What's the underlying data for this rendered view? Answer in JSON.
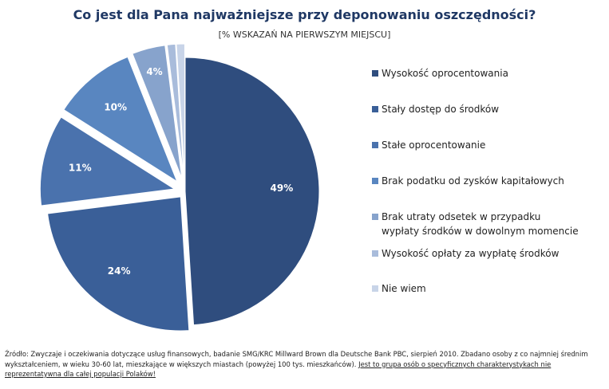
{
  "title": "Co jest dla Pana najważniejsze przy deponowaniu oszczędności?",
  "subtitle": "[% WSKAZAŃ NA PIERWSZYM MIEJSCU]",
  "chart_data": {
    "type": "pie",
    "title": "Co jest dla Pana najważniejsze przy deponowaniu oszczędności?",
    "subtitle": "[% WSKAZAŃ NA PIERWSZYM MIEJSCU]",
    "legend_position": "right",
    "unit": "%",
    "slices": [
      {
        "label": "Wysokość oprocentowania",
        "value": 49,
        "value_label": "49%",
        "color": "#2f4d7e"
      },
      {
        "label": "Stały dostęp do środków",
        "value": 24,
        "value_label": "24%",
        "color": "#3a5f98"
      },
      {
        "label": "Stałe oprocentowanie",
        "value": 11,
        "value_label": "11%",
        "color": "#4a72ad"
      },
      {
        "label": "Brak podatku od zysków kapitałowych",
        "value": 10,
        "value_label": "10%",
        "color": "#5986c0"
      },
      {
        "label": "Brak utraty odsetek w przypadku wypłaty środków w dowolnym momencie",
        "value": 4,
        "value_label": "4%",
        "color": "#87a3cc"
      },
      {
        "label": "Wysokość opłaty za wypłatę środków",
        "value": 1,
        "value_label": "",
        "color": "#a9bcdb"
      },
      {
        "label": "Nie wiem",
        "value": 1,
        "value_label": "",
        "color": "#c8d4e8"
      }
    ]
  },
  "source": {
    "text": "Źródło: Zwyczaje i oczekiwania dotyczące usług finansowych, badanie SMG/KRC Millward Brown dla Deutsche Bank PBC, sierpień 2010. Zbadano osoby z co najmniej średnim wykształceniem, w wieku 30-60 lat, mieszkające w większych miastach (powyżej 100 tys. mieszkańców).",
    "link_text": "Jest to grupa osób o specyficznych charakterystykach nie reprezentatywna dla całej populacji Polaków!"
  }
}
